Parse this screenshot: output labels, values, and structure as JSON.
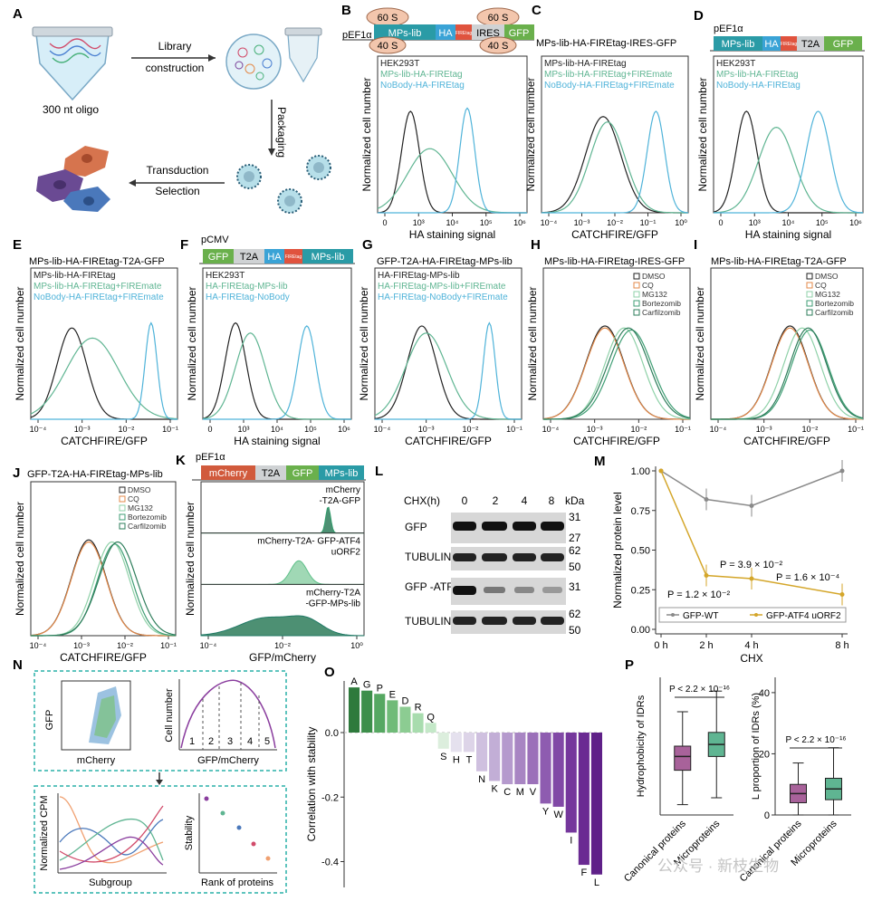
{
  "figure": {
    "panel_labels": [
      "A",
      "B",
      "C",
      "D",
      "E",
      "F",
      "G",
      "H",
      "I",
      "J",
      "K",
      "L",
      "M",
      "N",
      "O",
      "P"
    ],
    "watermark": "公众号 · 新枝生物"
  },
  "panelA": {
    "oligo_label": "300 nt oligo",
    "step1": "Library",
    "step1b": "construction",
    "step2": "Packaging",
    "step3": "Transduction",
    "step4": "Selection"
  },
  "constructs": {
    "B": {
      "promoter": "pEF1α",
      "ribo_top": [
        "60 S",
        "60 S"
      ],
      "ribo_bottom": [
        "40 S",
        "40 S"
      ],
      "parts": [
        "MPs-lib",
        "HA",
        "FIREtag",
        "IRES",
        "GFP"
      ]
    },
    "C": {
      "title": "MPs-lib-HA-FIREtag-IRES-GFP"
    },
    "D": {
      "promoter": "pEF1α",
      "parts": [
        "MPs-lib",
        "HA",
        "FIREtag",
        "T2A",
        "GFP"
      ]
    },
    "F": {
      "promoter": "pCMV",
      "parts": [
        "GFP",
        "T2A",
        "HA",
        "FIREtag",
        "MPs-lib"
      ]
    },
    "K": {
      "promoter": "pEF1α",
      "parts": [
        "mCherry",
        "T2A",
        "GFP",
        "MPs-lib"
      ]
    }
  },
  "colors": {
    "black": "#222222",
    "green": "#5fb592",
    "cyan": "#4fb3d9",
    "orange": "#e38a4a",
    "dark_green": "#2e7d5b",
    "mid_green": "#3f9e74",
    "light_green": "#8fd1a8",
    "purple": "#7a3f98",
    "gold": "#d4a62a",
    "gray": "#8a8a8a",
    "teal_dash": "#2ab0a8"
  },
  "histograms": {
    "ylabel": "Normalized cell number",
    "B": {
      "xlabel": "HA staining signal",
      "legend": [
        "HEK293T",
        "MPs-lib-HA-FIREtag",
        "NoBody-HA-FIREtag"
      ],
      "ticks": [
        "0",
        "10³",
        "10⁴",
        "10⁵",
        "10⁶"
      ]
    },
    "C": {
      "xlabel": "CATCHFIRE/GFP",
      "legend": [
        "MPs-lib-HA-FIREtag",
        "MPs-lib-HA-FIREtag+FIREmate",
        "NoBody-HA-FIREtag+FIREmate"
      ],
      "ticks": [
        "10⁻⁴",
        "10⁻³",
        "10⁻²",
        "10⁻¹",
        "10⁰"
      ]
    },
    "D": {
      "xlabel": "HA staining signal",
      "legend": [
        "HEK293T",
        "MPs-lib-HA-FIREtag",
        "NoBody-HA-FIREtag"
      ],
      "ticks": [
        "0",
        "10³",
        "10⁴",
        "10⁵",
        "10⁶"
      ]
    },
    "E": {
      "title": "MPs-lib-HA-FIREtag-T2A-GFP",
      "xlabel": "CATCHFIRE/GFP",
      "legend": [
        "MPs-lib-HA-FIREtag",
        "MPs-lib-HA-FIREtag+FIREmate",
        "NoBody-HA-FIREtag+FIREmate"
      ],
      "ticks": [
        "10⁻⁴",
        "10⁻³",
        "10⁻²",
        "10⁻¹"
      ]
    },
    "F": {
      "xlabel": "HA staining signal",
      "legend": [
        "HEK293T",
        "HA-FIREtag-MPs-lib",
        "HA-FIREtag-NoBody"
      ],
      "ticks": [
        "0",
        "10³",
        "10⁴",
        "10⁵",
        "10⁶"
      ]
    },
    "G": {
      "title": "GFP-T2A-HA-FIREtag-MPs-lib",
      "xlabel": "CATCHFIRE/GFP",
      "legend": [
        "HA-FIREtag-MPs-lib",
        "HA-FIREtag-MPs-lib+FIREmate",
        "HA-FIREtag-NoBody+FIREmate"
      ],
      "ticks": [
        "10⁻⁴",
        "10⁻³",
        "10⁻²",
        "10⁻¹"
      ]
    },
    "H": {
      "title": "MPs-lib-HA-FIREtag-IRES-GFP",
      "xlabel": "CATCHFIRE/GFP",
      "legend": [
        "DMSO",
        "CQ",
        "MG132",
        "Bortezomib",
        "Carfilzomib"
      ],
      "ticks": [
        "10⁻⁴",
        "10⁻³",
        "10⁻²",
        "10⁻¹"
      ]
    },
    "I": {
      "title": "MPs-lib-HA-FIREtag-T2A-GFP",
      "xlabel": "CATCHFIRE/GFP",
      "legend": [
        "DMSO",
        "CQ",
        "MG132",
        "Bortezomib",
        "Carfilzomib"
      ],
      "ticks": [
        "10⁻⁴",
        "10⁻³",
        "10⁻²",
        "10⁻¹"
      ]
    },
    "J": {
      "title": "GFP-T2A-HA-FIREtag-MPs-lib",
      "xlabel": "CATCHFIRE/GFP",
      "legend": [
        "DMSO",
        "CQ",
        "MG132",
        "Bortezomib",
        "Carfilzomib"
      ],
      "ticks": [
        "10⁻⁴",
        "10⁻³",
        "10⁻²",
        "10⁻¹"
      ]
    },
    "K": {
      "xlabel": "GFP/mCherry",
      "labels": [
        "mCherry -T2A-GFP",
        "mCherry-T2A- GFP-ATF4 uORF2",
        "mCherry-T2A -GFP-MPs-lib"
      ],
      "ticks": [
        "10⁻⁴",
        "10⁻²",
        "10⁰"
      ]
    }
  },
  "panelL": {
    "header": "CHX(h)",
    "times": [
      "0",
      "2",
      "4",
      "8"
    ],
    "unit": "kDa",
    "rows": [
      {
        "label": "GFP",
        "kda": [
          "31",
          "27"
        ]
      },
      {
        "label": "TUBULIN",
        "kda": [
          "62",
          "50"
        ]
      },
      {
        "label": "GFP -ATF4 uORF2",
        "kda": [
          "31"
        ]
      },
      {
        "label": "TUBULIN",
        "kda": [
          "62",
          "50"
        ]
      }
    ]
  },
  "panelN": {
    "scatter_x": "mCherry",
    "scatter_y": "GFP",
    "hist_x": "GFP/mCherry",
    "hist_y": "Cell number",
    "bins": [
      "1",
      "2",
      "3",
      "4",
      "5"
    ],
    "cpm_x": "Subgroup",
    "cpm_y": "Normalized CPM",
    "rank_x": "Rank of proteins",
    "rank_y": "Stability"
  },
  "chart_data": [
    {
      "panel": "M",
      "type": "line",
      "x": [
        "0 h",
        "2 h",
        "4 h",
        "8 h"
      ],
      "xlabel": "CHX",
      "ylabel": "Normalized protein level",
      "ylim": [
        0,
        1.0
      ],
      "yticks": [
        "0.00",
        "0.25",
        "0.50",
        "0.75",
        "1.00"
      ],
      "series": [
        {
          "name": "GFP-WT",
          "values": [
            1.0,
            0.82,
            0.78,
            1.0
          ],
          "color": "#8a8a8a"
        },
        {
          "name": "GFP-ATF4 uORF2",
          "values": [
            1.0,
            0.34,
            0.32,
            0.22
          ],
          "color": "#d4a62a"
        }
      ],
      "annotations": [
        "P = 3.9 × 10⁻²",
        "P = 1.6 × 10⁻⁴",
        "P = 1.2 × 10⁻²"
      ]
    },
    {
      "panel": "O",
      "type": "bar",
      "ylabel": "Correlation with stability",
      "ylim": [
        -0.48,
        0.16
      ],
      "yticks": [
        "0.0",
        "-0.2",
        "-0.4"
      ],
      "categories": [
        "A",
        "G",
        "P",
        "E",
        "D",
        "R",
        "Q",
        "S",
        "H",
        "T",
        "N",
        "K",
        "C",
        "M",
        "V",
        "Y",
        "W",
        "I",
        "F",
        "L"
      ],
      "values": [
        0.14,
        0.13,
        0.12,
        0.1,
        0.08,
        0.06,
        0.03,
        -0.05,
        -0.06,
        -0.06,
        -0.12,
        -0.15,
        -0.16,
        -0.16,
        -0.16,
        -0.22,
        -0.23,
        -0.31,
        -0.41,
        -0.44
      ]
    },
    {
      "panel": "P1",
      "type": "box",
      "ylabel": "Hydrophobicity of IDRs",
      "categories": [
        "Canonical proteins",
        "Microproteins"
      ],
      "annotation": "P < 2.2 × 10⁻¹⁶",
      "boxes": [
        {
          "min": 2.3,
          "q1": 3.3,
          "median": 3.7,
          "q3": 4.0,
          "max": 5.0
        },
        {
          "min": 2.5,
          "q1": 3.7,
          "median": 4.05,
          "q3": 4.4,
          "max": 5.6
        }
      ]
    },
    {
      "panel": "P2",
      "type": "box",
      "ylabel": "L proportion of IDRs (%)",
      "ylim": [
        0,
        45
      ],
      "yticks": [
        "0",
        "20",
        "40"
      ],
      "categories": [
        "Canonical proteins",
        "Microproteins"
      ],
      "annotation": "P < 2.2 × 10⁻¹⁶",
      "boxes": [
        {
          "min": 0,
          "q1": 4,
          "median": 7,
          "q3": 10,
          "max": 17
        },
        {
          "min": 0,
          "q1": 5,
          "median": 8.5,
          "q3": 12,
          "max": 22
        }
      ]
    }
  ]
}
